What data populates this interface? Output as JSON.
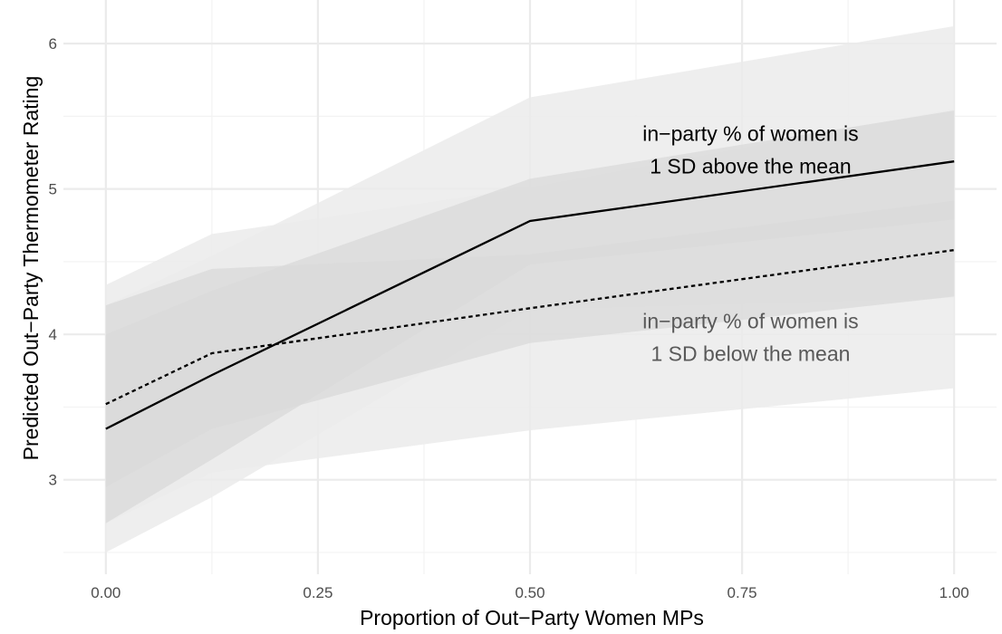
{
  "chart_data": {
    "type": "line",
    "title": "",
    "xlabel": "Proportion of Out−Party Women MPs",
    "ylabel": "Predicted Out−Party Thermometer Rating",
    "xlim": [
      -0.05,
      1.05
    ],
    "ylim": [
      2.35,
      6.3
    ],
    "x_ticks": [
      0,
      0.25,
      0.5,
      0.75,
      1
    ],
    "x_tick_labels": [
      "0.00",
      "0.25",
      "0.50",
      "0.75",
      "1.00"
    ],
    "y_ticks": [
      3,
      4,
      5,
      6
    ],
    "y_tick_labels": [
      "3",
      "4",
      "5",
      "6"
    ],
    "grid": true,
    "legend": "none",
    "series": [
      {
        "line_style": "solid",
        "color": "#000000",
        "x": [
          0,
          0.125,
          0.5,
          1
        ],
        "y": [
          3.35,
          3.72,
          4.78,
          5.19
        ],
        "ci95_lower": [
          2.5,
          2.88,
          4.17,
          4.25
        ],
        "ci95_upper": [
          4.2,
          4.54,
          5.63,
          6.12
        ],
        "ci84_lower": [
          2.7,
          3.14,
          4.48,
          4.79
        ],
        "ci84_upper": [
          4.0,
          4.3,
          5.07,
          5.54
        ]
      },
      {
        "line_style": "dashed",
        "color": "#000000",
        "x": [
          0,
          0.125,
          0.5,
          1
        ],
        "y": [
          3.52,
          3.87,
          4.18,
          4.58
        ],
        "ci95_lower": [
          2.7,
          3.05,
          3.34,
          3.63
        ],
        "ci95_upper": [
          4.34,
          4.69,
          5.01,
          5.55
        ],
        "ci84_lower": [
          2.95,
          3.35,
          3.94,
          4.26
        ],
        "ci84_upper": [
          4.2,
          4.45,
          4.55,
          4.92
        ]
      }
    ],
    "annotations": [
      {
        "lines": [
          "in−party % of women is",
          "1 SD above the mean"
        ],
        "x": 0.76,
        "y": 5.33,
        "color": "#000000"
      },
      {
        "lines": [
          "in−party % of women is",
          "1 SD below the mean"
        ],
        "x": 0.76,
        "y": 4.04,
        "color": "#595959"
      }
    ],
    "colors": {
      "band_outer": "#ebebeb",
      "band_inner": "#d9d9d9",
      "grid_major": "#ebebeb",
      "grid_minor": "#f3f3f3"
    }
  }
}
